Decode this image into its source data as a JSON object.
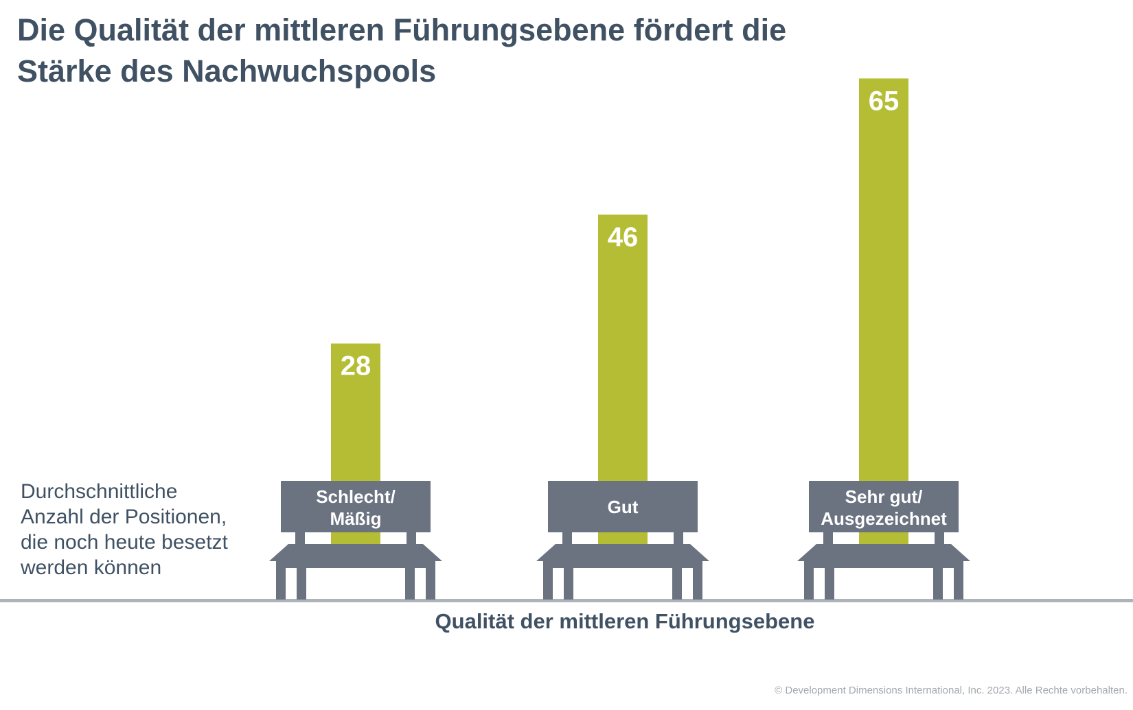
{
  "title_line1": "Die Qualität der mittleren Führungsebene fördert die",
  "title_line2": "Stärke des Nachwuchspools",
  "ylabel_lines": [
    "Durchschnittliche",
    "Anzahl der Positionen,",
    "die noch heute besetzt",
    "werden können"
  ],
  "xlabel": "Qualität der mittleren Führungsebene",
  "copyright": "© Development Dimensions International, Inc. 2023. Alle Rechte vorbehalten.",
  "colors": {
    "bar": "#b5bd35",
    "bench": "#6b7280",
    "baseline": "#aeb3b8",
    "text": "#3f5163"
  },
  "chart_data": {
    "type": "bar",
    "categories": [
      "Schlecht/\nMäßig",
      "Gut",
      "Sehr gut/\nAusgezeichnet"
    ],
    "values": [
      28,
      46,
      65
    ],
    "xlabel": "Qualität der mittleren Führungsebene",
    "ylabel": "Durchschnittliche Anzahl der Positionen, die noch heute besetzt werden können",
    "grid": false,
    "legend": "none"
  }
}
